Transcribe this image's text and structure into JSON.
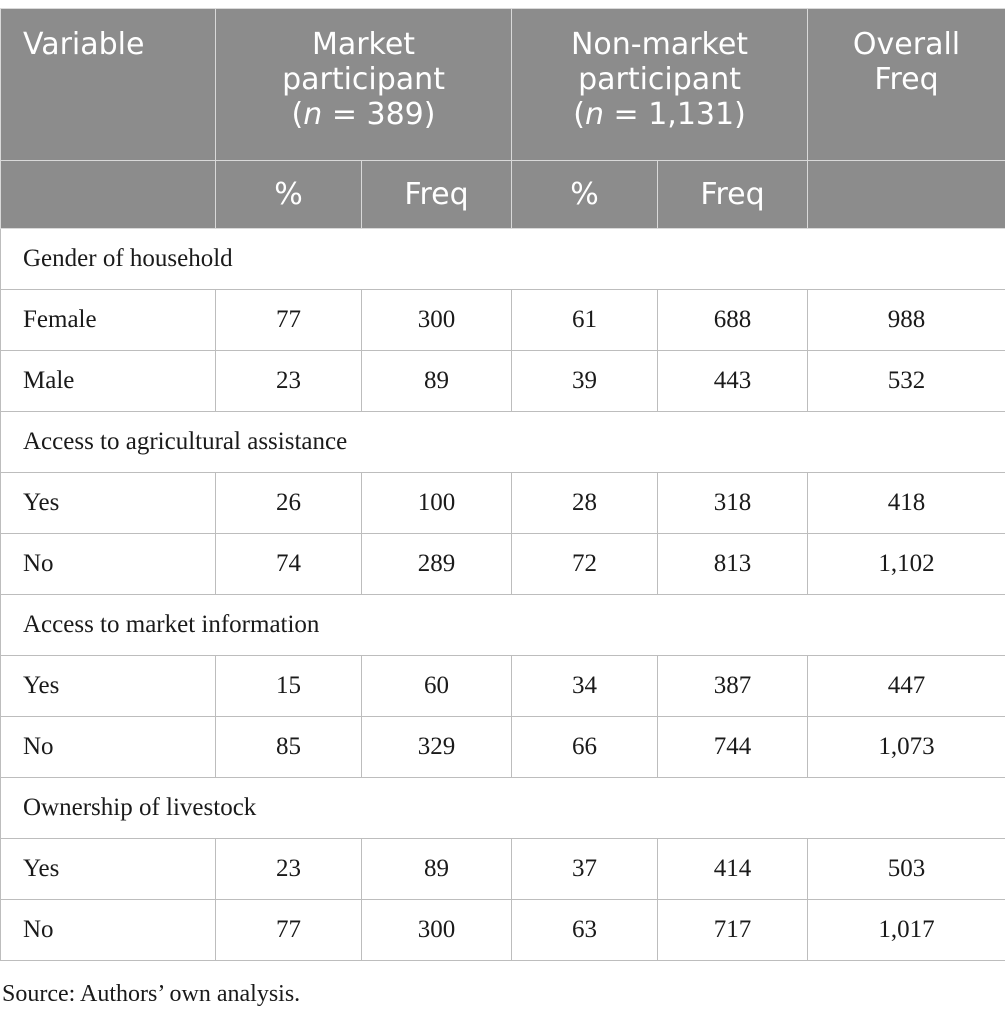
{
  "table": {
    "headers": {
      "variable": "Variable",
      "market_line1": "Market",
      "market_line2": "participant",
      "market_n_prefix": "(",
      "market_n_var": "n",
      "market_n_suffix": " = 389)",
      "nonmarket_line1": "Non-market",
      "nonmarket_line2": "participant",
      "nonmarket_n_prefix": "(",
      "nonmarket_n_var": "n",
      "nonmarket_n_suffix": " = 1,131)",
      "overall_line1": "Overall",
      "overall_line2": "Freq",
      "pct": "%",
      "freq": "Freq"
    },
    "groups": [
      {
        "title": "Gender of household",
        "rows": [
          {
            "label": "Female",
            "mp_pct": "77",
            "mp_freq": "300",
            "nmp_pct": "61",
            "nmp_freq": "688",
            "overall": "988"
          },
          {
            "label": "Male",
            "mp_pct": "23",
            "mp_freq": "89",
            "nmp_pct": "39",
            "nmp_freq": "443",
            "overall": "532"
          }
        ]
      },
      {
        "title": "Access to agricultural assistance",
        "rows": [
          {
            "label": "Yes",
            "mp_pct": "26",
            "mp_freq": "100",
            "nmp_pct": "28",
            "nmp_freq": "318",
            "overall": "418"
          },
          {
            "label": "No",
            "mp_pct": "74",
            "mp_freq": "289",
            "nmp_pct": "72",
            "nmp_freq": "813",
            "overall": "1,102"
          }
        ]
      },
      {
        "title": "Access to market information",
        "rows": [
          {
            "label": "Yes",
            "mp_pct": "15",
            "mp_freq": "60",
            "nmp_pct": "34",
            "nmp_freq": "387",
            "overall": "447"
          },
          {
            "label": "No",
            "mp_pct": "85",
            "mp_freq": "329",
            "nmp_pct": "66",
            "nmp_freq": "744",
            "overall": "1,073"
          }
        ]
      },
      {
        "title": "Ownership of livestock",
        "rows": [
          {
            "label": "Yes",
            "mp_pct": "23",
            "mp_freq": "89",
            "nmp_pct": "37",
            "nmp_freq": "414",
            "overall": "503"
          },
          {
            "label": "No",
            "mp_pct": "77",
            "mp_freq": "300",
            "nmp_pct": "63",
            "nmp_freq": "717",
            "overall": "1,017"
          }
        ]
      }
    ],
    "colors": {
      "header_bg": "#8c8c8c",
      "header_text": "#ffffff",
      "grid": "#bdbdbd"
    }
  },
  "source": "Source: Authors’ own analysis."
}
